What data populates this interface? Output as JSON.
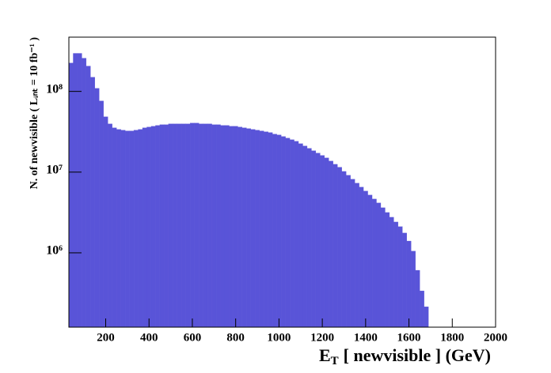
{
  "chart_data": {
    "type": "histogram",
    "x_label": {
      "symbol": "E",
      "subscript": "T",
      "text": "[ newvisible ] (GeV)"
    },
    "y_label": "N. of newvisible ( Lᵢₙₜ = 10 fb⁻¹ )",
    "color": "#5954d8",
    "log_y": true,
    "bins": [
      30,
      50,
      70,
      90,
      110,
      130,
      150,
      170,
      190,
      210,
      230,
      250,
      270,
      290,
      310,
      330,
      350,
      370,
      390,
      410,
      430,
      450,
      470,
      490,
      510,
      530,
      550,
      570,
      590,
      610,
      630,
      650,
      670,
      690,
      710,
      730,
      750,
      770,
      790,
      810,
      830,
      850,
      870,
      890,
      910,
      930,
      950,
      970,
      990,
      1010,
      1030,
      1050,
      1070,
      1090,
      1110,
      1130,
      1150,
      1170,
      1190,
      1210,
      1230,
      1250,
      1270,
      1290,
      1310,
      1330,
      1350,
      1370,
      1390,
      1410,
      1430,
      1450,
      1470,
      1490,
      1510,
      1530,
      1550,
      1570,
      1590,
      1610,
      1630,
      1650,
      1670,
      1690
    ],
    "values": [
      225000000,
      296000000,
      296000000,
      258000000,
      206000000,
      150000000,
      109000000,
      76200000,
      48500000,
      39600000,
      35400000,
      33800000,
      33100000,
      32400000,
      32400000,
      33100000,
      33800000,
      35400000,
      36200000,
      37000000,
      37900000,
      38700000,
      38700000,
      39600000,
      39600000,
      39600000,
      39600000,
      39600000,
      40500000,
      40500000,
      39600000,
      39600000,
      39600000,
      38700000,
      38700000,
      37900000,
      37900000,
      37000000,
      37000000,
      36200000,
      35400000,
      34600000,
      33800000,
      33100000,
      32400000,
      31600000,
      30900000,
      29600000,
      28900000,
      27600000,
      26400000,
      25200000,
      24100000,
      22500000,
      21100000,
      19700000,
      18400000,
      17200000,
      16100000,
      15000000,
      13700000,
      12500000,
      11500000,
      10200000,
      9140000,
      8170000,
      7300000,
      6520000,
      5820000,
      5200000,
      4640000,
      4150000,
      3620000,
      3160000,
      2760000,
      2410000,
      2110000,
      1760000,
      1400000,
      1050000,
      608000,
      338000,
      215000
    ],
    "xlim": [
      30,
      2000
    ],
    "xticks": [
      200,
      400,
      600,
      800,
      1000,
      1200,
      1400,
      1600,
      1800,
      2000
    ],
    "ylim": [
      120000,
      470000000
    ],
    "yticks": [
      {
        "value": 1000000,
        "label": "10⁶"
      },
      {
        "value": 10000000,
        "label": "10⁷"
      },
      {
        "value": 100000000,
        "label": "10⁸"
      }
    ]
  }
}
